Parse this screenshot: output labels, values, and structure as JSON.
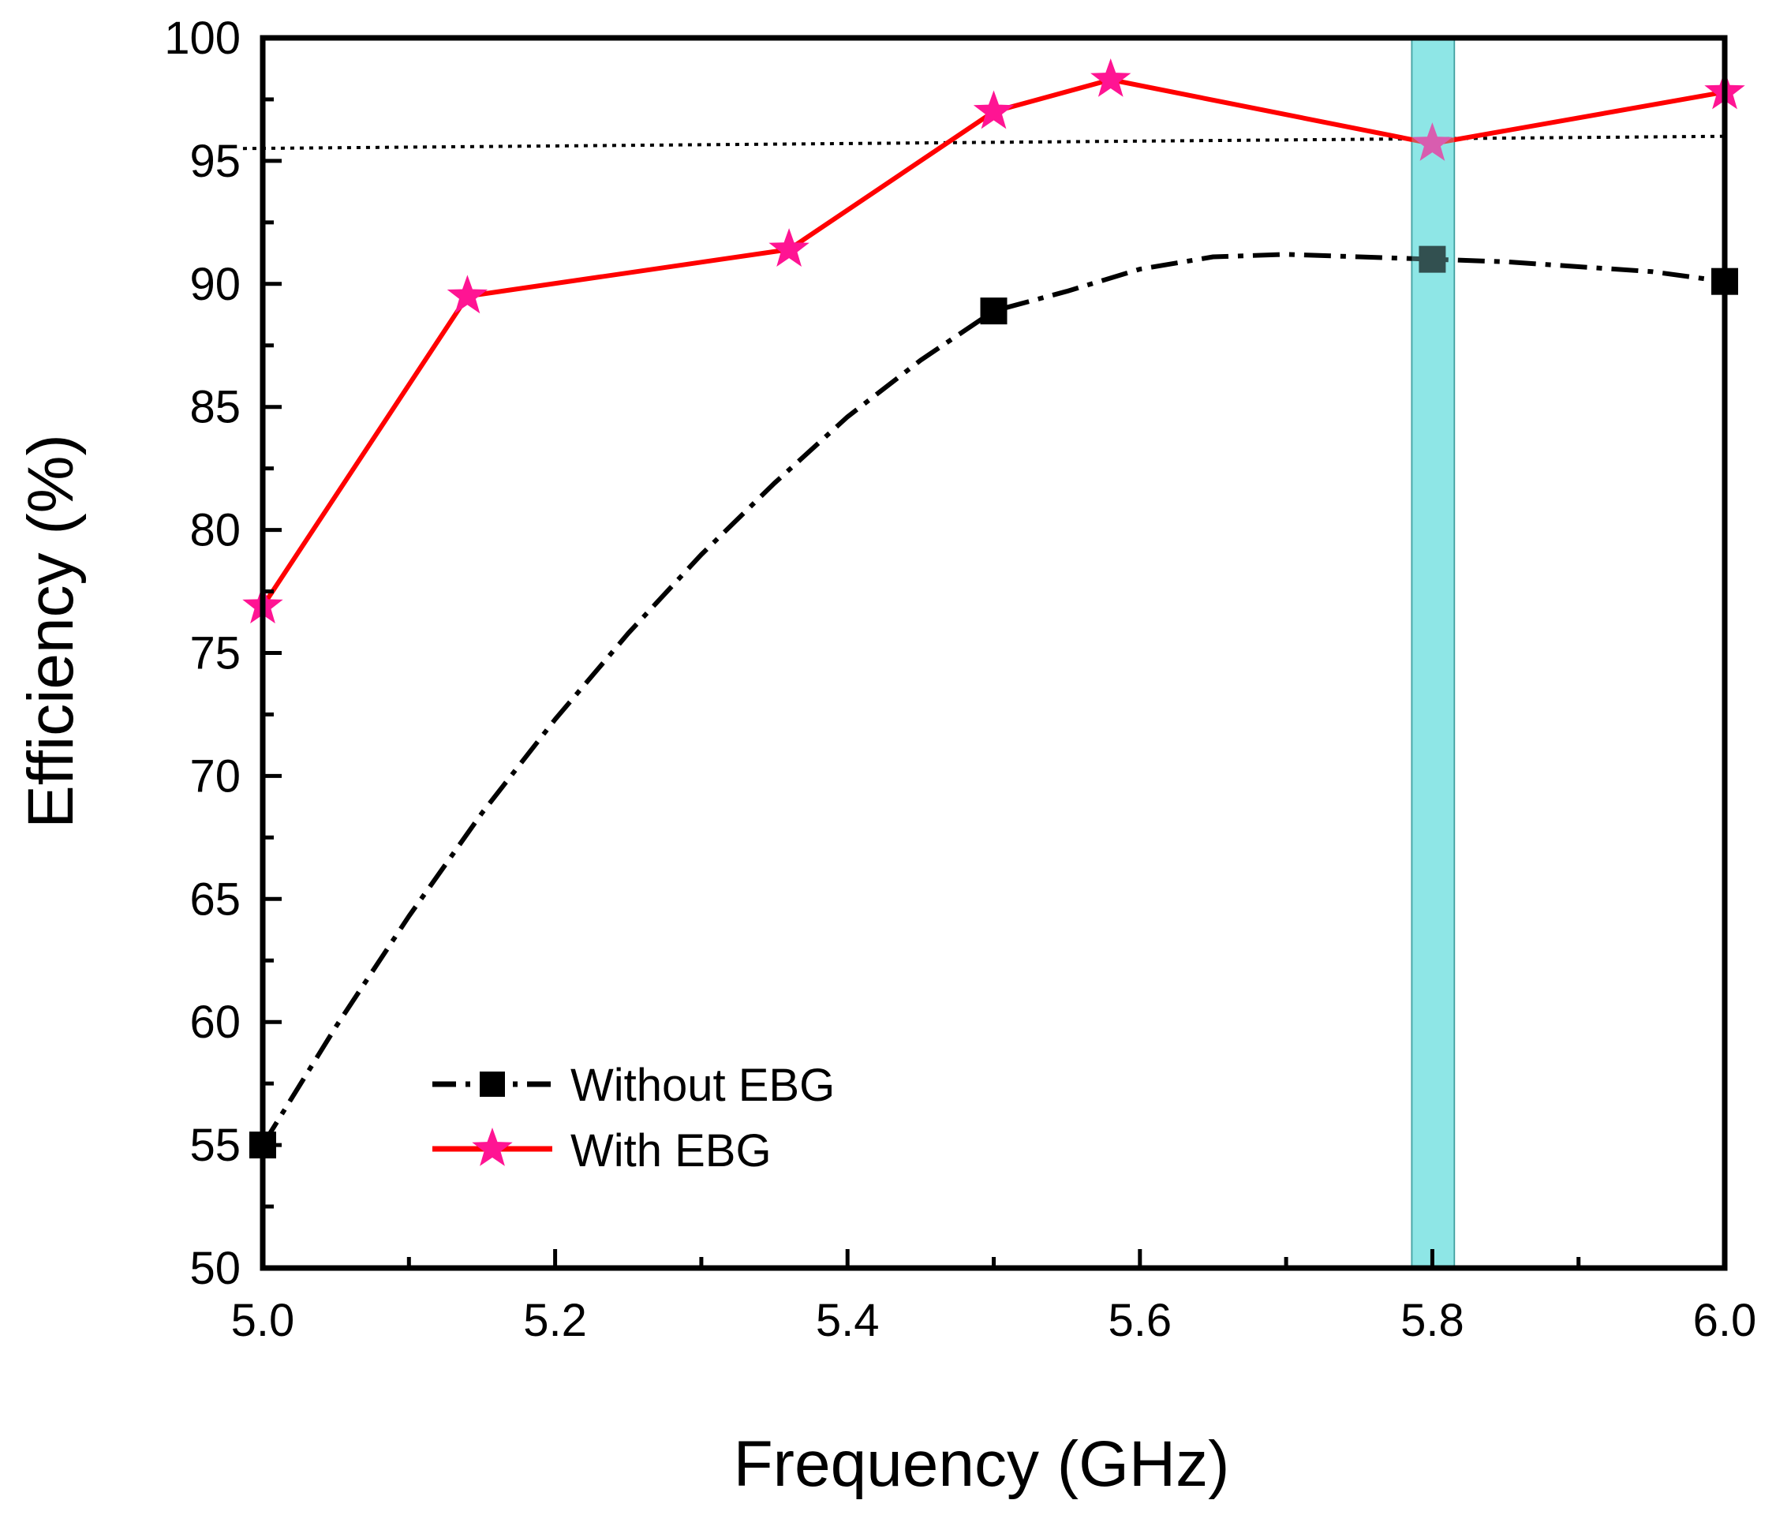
{
  "chart_data": {
    "type": "line",
    "xlabel": "Frequency (GHz)",
    "ylabel": "Efficiency (%)",
    "xlim": [
      5.0,
      6.0
    ],
    "ylim": [
      50,
      100
    ],
    "x_ticks": [
      "5.0",
      "5.2",
      "5.4",
      "5.6",
      "5.8",
      "6.0"
    ],
    "x_tick_values": [
      5.0,
      5.2,
      5.4,
      5.6,
      5.8,
      6.0
    ],
    "x_minor_tick_values": [
      5.1,
      5.3,
      5.5,
      5.7,
      5.9
    ],
    "y_ticks": [
      "50",
      "55",
      "60",
      "65",
      "70",
      "75",
      "80",
      "85",
      "90",
      "95",
      "100"
    ],
    "y_tick_values": [
      50,
      55,
      60,
      65,
      70,
      75,
      80,
      85,
      90,
      95,
      100
    ],
    "y_minor_tick_values": [
      52.5,
      57.5,
      62.5,
      67.5,
      72.5,
      77.5,
      82.5,
      87.5,
      92.5,
      97.5
    ],
    "series": [
      {
        "name": "Without EBG",
        "color": "#000000",
        "marker": "square",
        "line_style": "dash-dot",
        "x": [
          5.0,
          5.5,
          5.8,
          6.0
        ],
        "values": [
          55.0,
          88.9,
          91.0,
          90.1
        ],
        "curve_x": [
          5.0,
          5.05,
          5.1,
          5.15,
          5.2,
          5.25,
          5.3,
          5.35,
          5.4,
          5.45,
          5.5,
          5.55,
          5.6,
          5.65,
          5.7,
          5.75,
          5.8,
          5.85,
          5.9,
          5.95,
          6.0
        ],
        "curve_y": [
          55.0,
          59.8,
          64.3,
          68.5,
          72.3,
          75.8,
          79.0,
          81.9,
          84.6,
          86.9,
          88.9,
          89.7,
          90.6,
          91.1,
          91.2,
          91.1,
          91.0,
          90.9,
          90.7,
          90.5,
          90.1
        ]
      },
      {
        "name": "With EBG",
        "color": "#ff0000",
        "marker": "star",
        "marker_color": "#ff1493",
        "line_style": "solid",
        "x": [
          5.0,
          5.14,
          5.36,
          5.5,
          5.58,
          5.8,
          6.0
        ],
        "values": [
          76.9,
          89.5,
          91.4,
          97.0,
          98.3,
          95.7,
          97.8
        ]
      }
    ],
    "reference_line": {
      "x": [
        4.98,
        6.0
      ],
      "values": [
        95.5,
        96.0
      ],
      "style": "dotted",
      "color": "#000000"
    },
    "highlight_band": {
      "x_range": [
        5.786,
        5.815
      ],
      "color": "#8ee6e6"
    },
    "legend": {
      "position": "bottom-left"
    },
    "grid": false
  }
}
